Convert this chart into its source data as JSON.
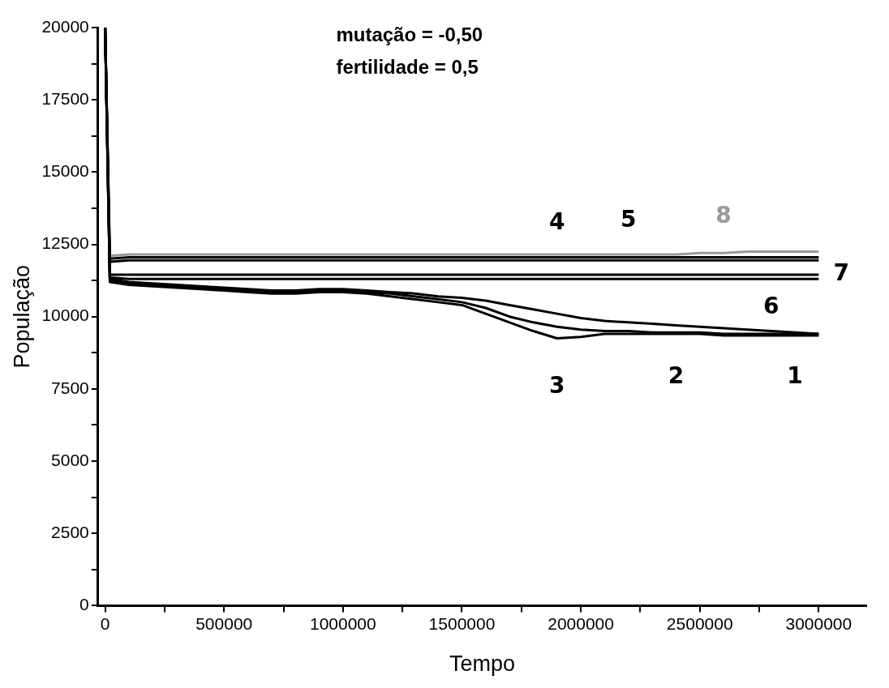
{
  "chart_data": {
    "type": "line",
    "xlabel": "Tempo",
    "ylabel": "População",
    "annotations": [
      "mutação = -0,50",
      "fertilidade = 0,5"
    ],
    "x": [
      0,
      20000,
      100000,
      200000,
      300000,
      400000,
      500000,
      600000,
      700000,
      800000,
      900000,
      1000000,
      1100000,
      1200000,
      1300000,
      1400000,
      1500000,
      1600000,
      1700000,
      1800000,
      1900000,
      2000000,
      2100000,
      2200000,
      2300000,
      2400000,
      2500000,
      2600000,
      2700000,
      2800000,
      2900000,
      3000000
    ],
    "xlim": [
      -30000,
      3200000
    ],
    "xticks": [
      0,
      {
        "value": 250000,
        "label": null
      },
      500000,
      {
        "value": 750000,
        "label": null
      },
      1000000,
      {
        "value": 1250000,
        "label": null
      },
      1500000,
      {
        "value": 1750000,
        "label": null
      },
      2000000,
      {
        "value": 2250000,
        "label": null
      },
      2500000,
      {
        "value": 2750000,
        "label": null
      },
      3000000
    ],
    "ylim": [
      0,
      20000
    ],
    "yticks": [
      0,
      {
        "value": 1250,
        "label": null
      },
      2500,
      {
        "value": 3750,
        "label": null
      },
      5000,
      {
        "value": 6250,
        "label": null
      },
      7500,
      {
        "value": 8750,
        "label": null
      },
      10000,
      {
        "value": 11250,
        "label": null
      },
      12500,
      {
        "value": 13750,
        "label": null
      },
      15000,
      {
        "value": 16250,
        "label": null
      },
      17500,
      {
        "value": 18750,
        "label": null
      },
      20000
    ],
    "series": [
      {
        "name": "1",
        "color": "#000000",
        "values": [
          20000,
          11300,
          11200,
          11150,
          11100,
          11050,
          11000,
          10950,
          10900,
          10900,
          10950,
          10950,
          10900,
          10850,
          10800,
          10700,
          10650,
          10550,
          10400,
          10250,
          10100,
          9950,
          9850,
          9800,
          9750,
          9700,
          9650,
          9600,
          9550,
          9500,
          9450,
          9400
        ]
      },
      {
        "name": "2",
        "color": "#000000",
        "values": [
          20000,
          11250,
          11150,
          11100,
          11050,
          11000,
          10950,
          10900,
          10850,
          10850,
          10900,
          10900,
          10850,
          10800,
          10700,
          10600,
          10500,
          10300,
          10000,
          9800,
          9650,
          9550,
          9500,
          9500,
          9450,
          9450,
          9450,
          9400,
          9400,
          9400,
          9400,
          9400
        ]
      },
      {
        "name": "3",
        "color": "#000000",
        "values": [
          20000,
          11200,
          11100,
          11050,
          11000,
          10950,
          10900,
          10850,
          10800,
          10800,
          10850,
          10850,
          10800,
          10700,
          10600,
          10500,
          10400,
          10100,
          9800,
          9500,
          9250,
          9300,
          9400,
          9400,
          9400,
          9400,
          9400,
          9350,
          9350,
          9350,
          9350,
          9350
        ]
      },
      {
        "name": "4",
        "color": "#000000",
        "values": [
          20000,
          11900,
          11950,
          11950,
          11950,
          11950,
          11950,
          11950,
          11950,
          11950,
          11950,
          11950,
          11950,
          11950,
          11950,
          11950,
          11950,
          11950,
          11950,
          11950,
          11950,
          11950,
          11950,
          11950,
          11950,
          11950,
          11950,
          11950,
          11950,
          11950,
          11950,
          11950
        ]
      },
      {
        "name": "5",
        "color": "#000000",
        "values": [
          20000,
          12000,
          12050,
          12050,
          12050,
          12050,
          12050,
          12050,
          12050,
          12050,
          12050,
          12050,
          12050,
          12050,
          12050,
          12050,
          12050,
          12050,
          12050,
          12050,
          12050,
          12050,
          12050,
          12050,
          12050,
          12050,
          12050,
          12050,
          12050,
          12050,
          12050,
          12050
        ]
      },
      {
        "name": "6",
        "color": "#000000",
        "values": [
          20000,
          11350,
          11300,
          11300,
          11300,
          11300,
          11300,
          11300,
          11300,
          11300,
          11300,
          11300,
          11300,
          11300,
          11300,
          11300,
          11300,
          11300,
          11300,
          11300,
          11300,
          11300,
          11300,
          11300,
          11300,
          11300,
          11300,
          11300,
          11300,
          11300,
          11300,
          11300
        ]
      },
      {
        "name": "7",
        "color": "#000000",
        "values": [
          20000,
          11450,
          11450,
          11450,
          11450,
          11450,
          11450,
          11450,
          11450,
          11450,
          11450,
          11450,
          11450,
          11450,
          11450,
          11450,
          11450,
          11450,
          11450,
          11450,
          11450,
          11450,
          11450,
          11450,
          11450,
          11450,
          11450,
          11450,
          11450,
          11450,
          11450,
          11450
        ]
      },
      {
        "name": "8",
        "color": "#9a9a9a",
        "values": [
          20000,
          12100,
          12150,
          12150,
          12150,
          12150,
          12150,
          12150,
          12150,
          12150,
          12150,
          12150,
          12150,
          12150,
          12150,
          12150,
          12150,
          12150,
          12150,
          12150,
          12150,
          12150,
          12150,
          12150,
          12150,
          12150,
          12200,
          12200,
          12250,
          12250,
          12250,
          12250
        ]
      }
    ],
    "grid": false,
    "legend": false,
    "marker": "none",
    "line_style": "solid"
  }
}
